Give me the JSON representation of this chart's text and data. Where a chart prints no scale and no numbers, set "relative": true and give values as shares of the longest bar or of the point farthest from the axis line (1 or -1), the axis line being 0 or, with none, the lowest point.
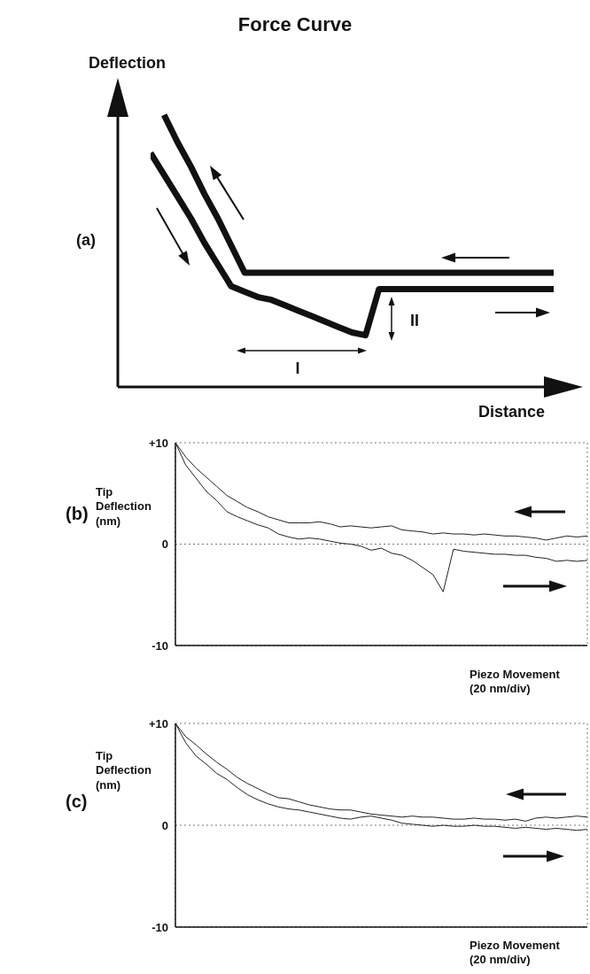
{
  "chart_data": [
    {
      "type": "line",
      "title": "Force Curve",
      "xlabel": "Distance",
      "ylabel": "Deflection",
      "relative": true,
      "tick_labels": false,
      "annotations": [
        "(a)",
        "I",
        "II"
      ],
      "categories": [
        null,
        null,
        null,
        null,
        null,
        null,
        null,
        null,
        null,
        null,
        null,
        null,
        null,
        null,
        null,
        null,
        null,
        null,
        null,
        null,
        null,
        null,
        null,
        null,
        null,
        null,
        null,
        null,
        null,
        null,
        null
      ],
      "series": [
        {
          "color": "#111111",
          "values": [
            null,
            1,
            0.9,
            0.81,
            0.71,
            0.62,
            0.52,
            0.42,
            0.42,
            0.42,
            0.42,
            0.42,
            0.42,
            0.42,
            0.42,
            0.42,
            0.42,
            0.42,
            0.42,
            0.42,
            0.42,
            0.42,
            0.42,
            0.42,
            0.42,
            0.42,
            0.42,
            0.42,
            0.42,
            0.42,
            0.42
          ]
        },
        {
          "color": "#111111",
          "values": [
            0.86,
            0.78,
            0.7,
            0.62,
            0.53,
            0.45,
            0.37,
            0.35,
            0.33,
            0.32,
            0.3,
            0.28,
            0.26,
            0.24,
            0.22,
            0.2,
            0.19,
            0.36,
            0.36,
            0.36,
            0.36,
            0.36,
            0.36,
            0.36,
            0.36,
            0.36,
            0.36,
            0.36,
            0.36,
            0.36,
            0.36
          ]
        }
      ]
    },
    {
      "type": "line",
      "xlabel": "Piezo Movement (20 nm/div)",
      "ylabel": "Tip Deflection (nm)",
      "annotations": [
        "(b)"
      ],
      "ylim": [
        -10,
        10
      ],
      "yticks": [
        {
          "value": 10,
          "label": "+10"
        },
        {
          "value": 0,
          "label": "0"
        },
        {
          "value": -10,
          "label": "-10"
        }
      ],
      "grid": true,
      "tick_labels": "y",
      "categories": [
        null,
        null,
        null,
        null,
        null,
        null,
        null,
        null,
        null,
        null,
        null,
        null,
        null,
        null,
        null,
        null,
        null,
        null,
        null,
        null,
        null,
        null,
        null,
        null,
        null,
        null,
        null,
        null,
        null,
        null,
        null,
        null,
        null,
        null,
        null,
        null,
        null,
        null,
        null,
        null,
        null
      ],
      "series": [
        {
          "color": "#222222",
          "values": [
            10,
            8.6,
            7.5,
            6.6,
            5.7,
            4.8,
            4.2,
            3.6,
            3.2,
            2.7,
            2.4,
            2.1,
            2.1,
            2.1,
            2.2,
            2.0,
            1.7,
            1.8,
            1.7,
            1.6,
            1.7,
            1.8,
            1.4,
            1.3,
            1.2,
            1.0,
            1.1,
            1.0,
            1.0,
            0.9,
            1.0,
            0.9,
            0.8,
            0.8,
            0.7,
            0.6,
            0.4,
            0.6,
            0.8,
            0.7,
            0.8
          ]
        },
        {
          "color": "#222222",
          "values": [
            10,
            7.8,
            6.5,
            5.2,
            4.3,
            3.2,
            2.7,
            2.3,
            1.9,
            1.6,
            1.0,
            0.7,
            0.5,
            0.6,
            0.5,
            0.3,
            0.1,
            0.0,
            -0.2,
            -0.6,
            -0.4,
            -0.9,
            -1.1,
            -1.6,
            -2.3,
            -3.0,
            -4.7,
            -0.5,
            -0.7,
            -0.8,
            -0.9,
            -1.0,
            -1.0,
            -1.1,
            -1.1,
            -1.3,
            -1.4,
            -1.7,
            -1.6,
            -1.7,
            -1.6
          ]
        }
      ]
    },
    {
      "type": "line",
      "xlabel": "Piezo Movement (20 nm/div)",
      "ylabel": "Tip Deflection (nm)",
      "annotations": [
        "(c)"
      ],
      "ylim": [
        -10,
        10
      ],
      "yticks": [
        {
          "value": 10,
          "label": "+10"
        },
        {
          "value": 0,
          "label": "0"
        },
        {
          "value": -10,
          "label": "-10"
        }
      ],
      "grid": true,
      "tick_labels": "y",
      "categories": [
        null,
        null,
        null,
        null,
        null,
        null,
        null,
        null,
        null,
        null,
        null,
        null,
        null,
        null,
        null,
        null,
        null,
        null,
        null,
        null,
        null,
        null,
        null,
        null,
        null,
        null,
        null,
        null,
        null,
        null,
        null,
        null,
        null,
        null,
        null,
        null,
        null,
        null,
        null,
        null,
        null
      ],
      "series": [
        {
          "color": "#222222",
          "values": [
            10,
            8.7,
            7.9,
            7.0,
            6.2,
            5.5,
            4.7,
            4.1,
            3.6,
            3.1,
            2.7,
            2.6,
            2.3,
            2.0,
            1.8,
            1.6,
            1.5,
            1.5,
            1.3,
            1.1,
            1.0,
            0.9,
            0.8,
            0.9,
            0.8,
            0.8,
            0.7,
            0.6,
            0.6,
            0.7,
            0.6,
            0.6,
            0.5,
            0.6,
            0.4,
            0.7,
            0.8,
            0.7,
            0.8,
            0.9,
            0.8
          ]
        },
        {
          "color": "#222222",
          "values": [
            10,
            8.1,
            6.8,
            6.0,
            5.1,
            4.5,
            3.7,
            3.0,
            2.5,
            2.1,
            1.8,
            1.6,
            1.5,
            1.3,
            1.1,
            0.9,
            0.7,
            0.6,
            0.8,
            0.9,
            0.7,
            0.5,
            0.2,
            0.1,
            0.0,
            -0.1,
            0.0,
            -0.1,
            -0.1,
            0.0,
            -0.1,
            -0.1,
            -0.2,
            -0.3,
            -0.2,
            -0.3,
            -0.4,
            -0.3,
            -0.4,
            -0.5,
            -0.4
          ]
        }
      ]
    }
  ]
}
